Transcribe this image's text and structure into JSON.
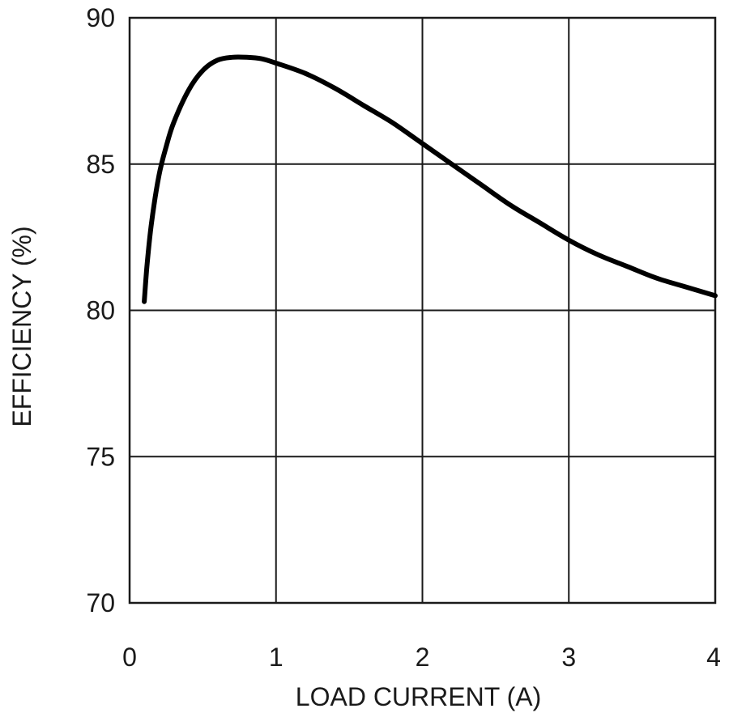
{
  "chart_data": {
    "type": "line",
    "title": "",
    "xlabel": "LOAD CURRENT (A)",
    "ylabel": "EFFICIENCY (%)",
    "xlim": [
      0,
      4
    ],
    "ylim": [
      70,
      90
    ],
    "xticks": [
      "0",
      "1",
      "2",
      "3",
      "4"
    ],
    "yticks": [
      "70",
      "75",
      "80",
      "85",
      "90"
    ],
    "grid": true,
    "series": [
      {
        "color": "#000000",
        "x": [
          0.1,
          0.12,
          0.15,
          0.2,
          0.25,
          0.3,
          0.4,
          0.5,
          0.6,
          0.7,
          0.8,
          0.9,
          1.0,
          1.2,
          1.4,
          1.6,
          1.8,
          2.0,
          2.2,
          2.4,
          2.6,
          2.8,
          3.0,
          3.2,
          3.4,
          3.6,
          3.8,
          4.0
        ],
        "y": [
          80.3,
          81.6,
          83.0,
          84.6,
          85.6,
          86.4,
          87.5,
          88.2,
          88.55,
          88.65,
          88.65,
          88.6,
          88.45,
          88.1,
          87.6,
          87.0,
          86.4,
          85.7,
          85.0,
          84.3,
          83.6,
          83.0,
          82.4,
          81.9,
          81.5,
          81.1,
          80.8,
          80.5
        ]
      }
    ]
  }
}
